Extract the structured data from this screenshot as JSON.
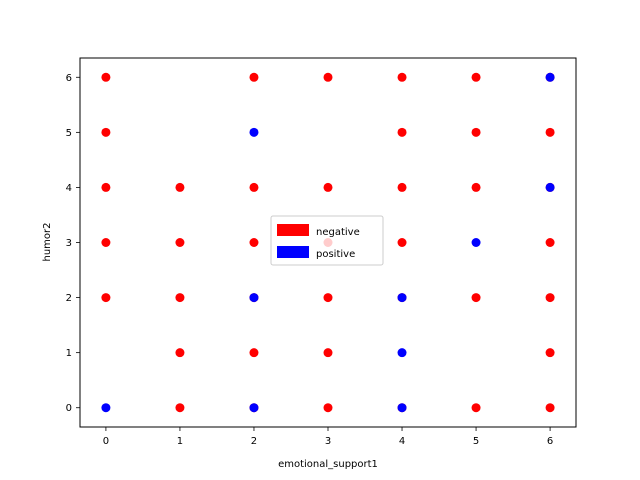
{
  "chart_data": {
    "type": "scatter",
    "title": "",
    "xlabel": "emotional_support1",
    "ylabel": "humor2",
    "xlim": [
      -0.35,
      6.35
    ],
    "ylim": [
      -0.35,
      6.35
    ],
    "xticks": [
      "0",
      "1",
      "2",
      "3",
      "4",
      "5",
      "6"
    ],
    "yticks": [
      "0",
      "1",
      "2",
      "3",
      "4",
      "5",
      "6"
    ],
    "grid": false,
    "legend_position": "center",
    "series": [
      {
        "name": "negative",
        "color": "#ff0000",
        "points": [
          [
            0,
            2
          ],
          [
            0,
            3
          ],
          [
            0,
            4
          ],
          [
            0,
            5
          ],
          [
            0,
            6
          ],
          [
            1,
            0
          ],
          [
            1,
            1
          ],
          [
            1,
            2
          ],
          [
            1,
            3
          ],
          [
            1,
            4
          ],
          [
            2,
            0
          ],
          [
            2,
            1
          ],
          [
            2,
            2
          ],
          [
            2,
            3
          ],
          [
            2,
            4
          ],
          [
            2,
            6
          ],
          [
            3,
            0
          ],
          [
            3,
            1
          ],
          [
            3,
            2
          ],
          [
            3,
            3
          ],
          [
            3,
            4
          ],
          [
            3,
            6
          ],
          [
            4,
            0
          ],
          [
            4,
            2
          ],
          [
            4,
            3
          ],
          [
            4,
            4
          ],
          [
            4,
            5
          ],
          [
            4,
            6
          ],
          [
            5,
            0
          ],
          [
            5,
            2
          ],
          [
            5,
            4
          ],
          [
            5,
            5
          ],
          [
            5,
            6
          ],
          [
            6,
            0
          ],
          [
            6,
            1
          ],
          [
            6,
            2
          ],
          [
            6,
            3
          ],
          [
            6,
            4
          ],
          [
            6,
            5
          ],
          [
            6,
            6
          ]
        ]
      },
      {
        "name": "positive",
        "color": "#0000ff",
        "points": [
          [
            0,
            0
          ],
          [
            2,
            0
          ],
          [
            2,
            2
          ],
          [
            2,
            5
          ],
          [
            4,
            0
          ],
          [
            4,
            1
          ],
          [
            4,
            2
          ],
          [
            5,
            3
          ],
          [
            6,
            4
          ],
          [
            6,
            6
          ]
        ]
      }
    ]
  }
}
